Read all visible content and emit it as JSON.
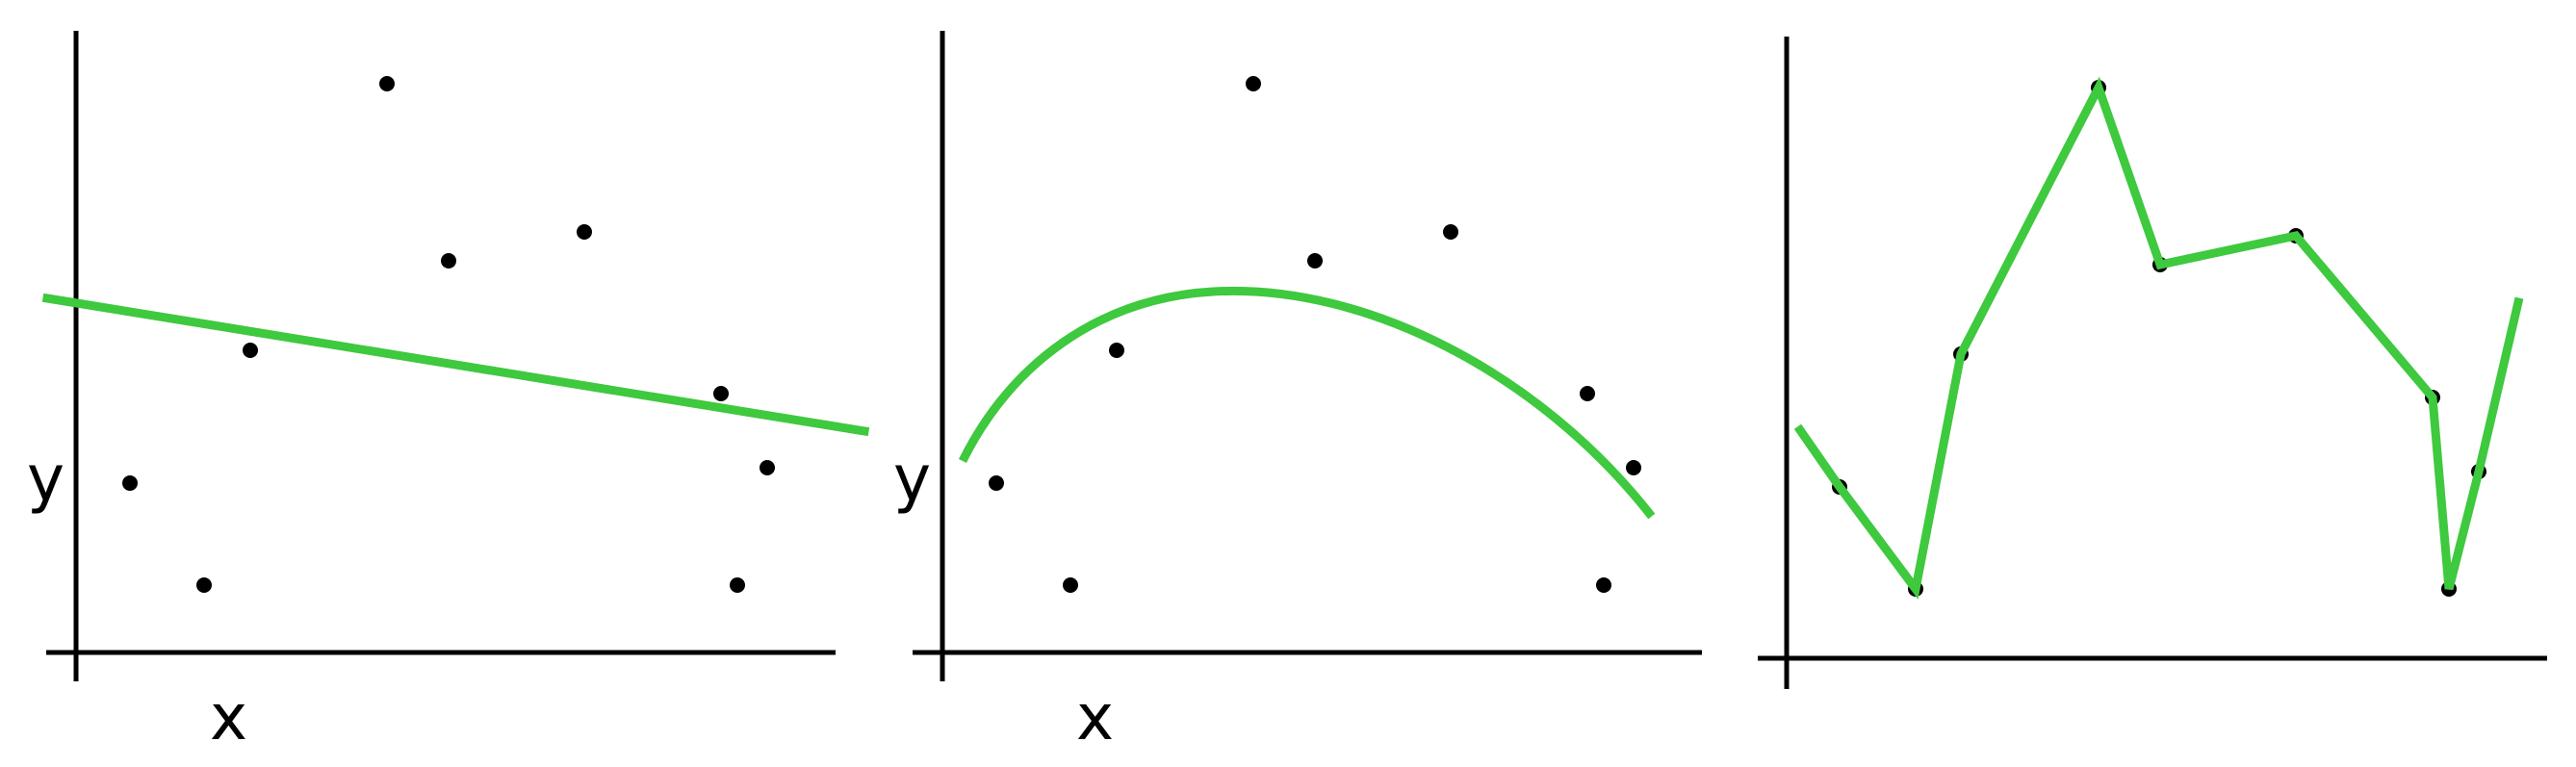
{
  "figure": {
    "fit_color": "#3ec93e",
    "point_color": "#000000",
    "axis_color": "#000000"
  },
  "panels": [
    {
      "name": "linear-fit",
      "fit_type": "line",
      "x_label": "x",
      "y_label": "y"
    },
    {
      "name": "quadratic-fit",
      "fit_type": "curve",
      "x_label": "x",
      "y_label": "y"
    },
    {
      "name": "overfit",
      "fit_type": "polyline",
      "x_label": "",
      "y_label": ""
    }
  ]
}
